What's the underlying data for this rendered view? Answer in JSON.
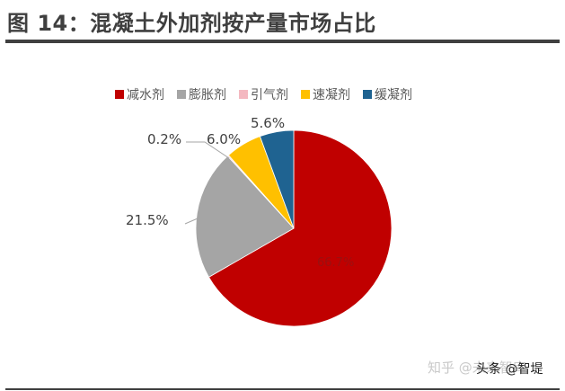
{
  "header": {
    "title": "图  14：混凝土外加剂按产量市场占比"
  },
  "chart_data": {
    "type": "pie",
    "title": "图 14：混凝土外加剂按产量市场占比",
    "categories": [
      "减水剂",
      "膨胀剂",
      "引气剂",
      "速凝剂",
      "缓凝剂"
    ],
    "values": [
      66.7,
      21.5,
      0.2,
      6.0,
      5.6
    ],
    "unit": "%",
    "colors": [
      "#C00000",
      "#A5A5A5",
      "#F4B8C0",
      "#FFC000",
      "#1F6391"
    ],
    "data_labels": [
      "66.7%",
      "21.5%",
      "0.2%",
      "6.0%",
      "5.6%"
    ],
    "legend_position": "top",
    "start_angle": 0,
    "direction": "clockwise"
  },
  "legend": [
    {
      "label": "减水剂",
      "color": "#C00000"
    },
    {
      "label": "膨胀剂",
      "color": "#A5A5A5"
    },
    {
      "label": "引气剂",
      "color": "#F4B8C0"
    },
    {
      "label": "速凝剂",
      "color": "#FFC000"
    },
    {
      "label": "缓凝剂",
      "color": "#1F6391"
    }
  ],
  "watermark": {
    "primary": "知乎 @未来智库",
    "secondary": "头条 @智堤"
  }
}
